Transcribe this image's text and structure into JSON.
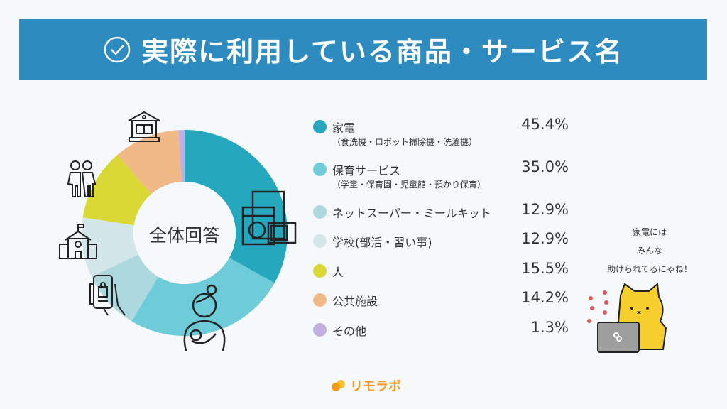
{
  "header": {
    "title": "実際に利用している商品・サービス名",
    "icon": "check-circle-icon"
  },
  "chart_data": {
    "type": "pie",
    "style": "donut",
    "center_label": "全体回答",
    "categories": [
      "家電",
      "保育サービス",
      "ネットスーパー・ミールキット",
      "学校(部活・習い事)",
      "人",
      "公共施設",
      "その他"
    ],
    "sublabels": [
      "（食洗機・ロボット掃除機・洗濯機）",
      "（学童・保育園・児童館・預かり保育）",
      "",
      "",
      "",
      "",
      ""
    ],
    "values": [
      45.4,
      35.0,
      12.9,
      12.9,
      15.5,
      14.2,
      1.3
    ],
    "value_labels": [
      "45.4%",
      "35.0%",
      "12.9%",
      "12.9%",
      "15.5%",
      "14.2%",
      "1.3%"
    ],
    "colors": [
      "#25a8bd",
      "#6ecbd8",
      "#acd8de",
      "#d3e7ea",
      "#dad834",
      "#f1b985",
      "#c3aee0"
    ],
    "legend_position": "right",
    "icons": [
      "appliances-icon",
      "mother-baby-icon",
      "phone-shopping-icon",
      "school-icon",
      "people-icon",
      "library-icon"
    ]
  },
  "mascot": {
    "speech": [
      "家電には",
      "みんな",
      "助けられてるにゃね！"
    ]
  },
  "footer": {
    "logo": "リモラボ"
  }
}
